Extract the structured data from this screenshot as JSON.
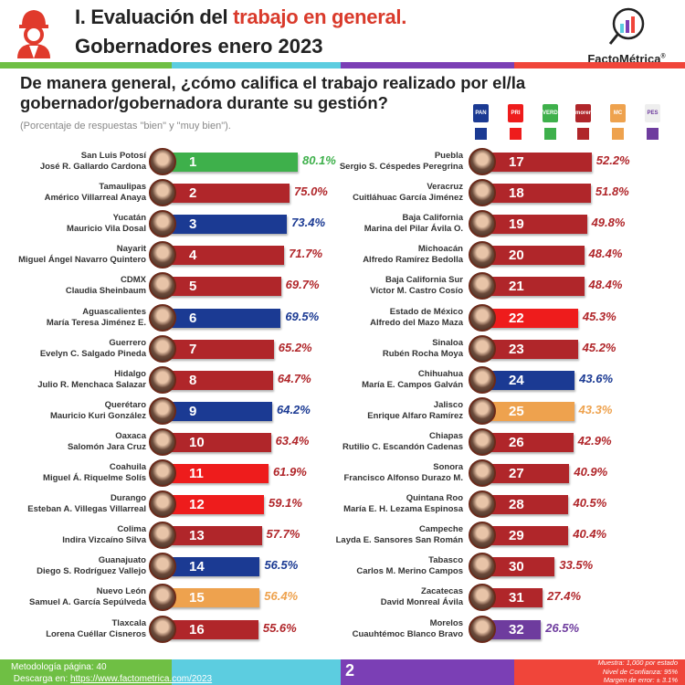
{
  "header": {
    "title_prefix": "I. Evaluación del ",
    "title_highlight": "trabajo en general.",
    "subtitle": "Gobernadores enero 2023",
    "brand": "FactoMétrica",
    "brand_mark": "®"
  },
  "question": "De manera general, ¿cómo califica el trabajo realizado por el/la gobernador/gobernadora durante su gestión?",
  "note": "(Porcentaje de respuestas \"bien\" y \"muy bien\").",
  "colors": {
    "stripe": [
      "#6fbf44",
      "#5ccde0",
      "#7b3fb5",
      "#f0453a"
    ],
    "PAN": "#1b3a93",
    "PRI": "#ee1c1c",
    "PVEM": "#3eb04b",
    "MORENA": "#b0262a",
    "MC": "#eea24e",
    "PES": "#6e3c9e"
  },
  "legend": [
    {
      "party": "PAN",
      "logo": "PAN"
    },
    {
      "party": "PRI",
      "logo": "PRI"
    },
    {
      "party": "PVEM",
      "logo": "VERDE"
    },
    {
      "party": "MORENA",
      "logo": "morena"
    },
    {
      "party": "MC",
      "logo": "MC"
    },
    {
      "party": "PES",
      "logo": "PES"
    }
  ],
  "chart_data": {
    "type": "bar",
    "orientation": "horizontal",
    "unit": "%",
    "rows": [
      {
        "rank": "1",
        "state": "San Luis Potosí",
        "governor": "José R. Gallardo Cardona",
        "value": 80.1,
        "label": "80.1%",
        "party": "PVEM"
      },
      {
        "rank": "2",
        "state": "Tamaulipas",
        "governor": "Américo Villarreal Anaya",
        "value": 75.0,
        "label": "75.0%",
        "party": "MORENA"
      },
      {
        "rank": "3",
        "state": "Yucatán",
        "governor": "Mauricio Vila Dosal",
        "value": 73.4,
        "label": "73.4%",
        "party": "PAN"
      },
      {
        "rank": "4",
        "state": "Nayarit",
        "governor": "Miguel Ángel Navarro Quintero",
        "value": 71.7,
        "label": "71.7%",
        "party": "MORENA"
      },
      {
        "rank": "5",
        "state": "CDMX",
        "governor": "Claudia Sheinbaum",
        "value": 69.7,
        "label": "69.7%",
        "party": "MORENA"
      },
      {
        "rank": "6",
        "state": "Aguascalientes",
        "governor": "María Teresa Jiménez E.",
        "value": 69.5,
        "label": "69.5%",
        "party": "PAN"
      },
      {
        "rank": "7",
        "state": "Guerrero",
        "governor": "Evelyn C. Salgado Pineda",
        "value": 65.2,
        "label": "65.2%",
        "party": "MORENA"
      },
      {
        "rank": "8",
        "state": "Hidalgo",
        "governor": "Julio R. Menchaca Salazar",
        "value": 64.7,
        "label": "64.7%",
        "party": "MORENA"
      },
      {
        "rank": "9",
        "state": "Querétaro",
        "governor": "Mauricio Kuri González",
        "value": 64.2,
        "label": "64.2%",
        "party": "PAN"
      },
      {
        "rank": "10",
        "state": "Oaxaca",
        "governor": "Salomón Jara Cruz",
        "value": 63.4,
        "label": "63.4%",
        "party": "MORENA"
      },
      {
        "rank": "11",
        "state": "Coahuila",
        "governor": "Miguel Á. Riquelme Solís",
        "value": 61.9,
        "label": "61.9%",
        "party": "PRI"
      },
      {
        "rank": "12",
        "state": "Durango",
        "governor": "Esteban A. Villegas Villarreal",
        "value": 59.1,
        "label": "59.1%",
        "party": "PRI"
      },
      {
        "rank": "13",
        "state": "Colima",
        "governor": "Indira Vizcaíno Silva",
        "value": 57.7,
        "label": "57.7%",
        "party": "MORENA"
      },
      {
        "rank": "14",
        "state": "Guanajuato",
        "governor": "Diego S. Rodríguez Vallejo",
        "value": 56.5,
        "label": "56.5%",
        "party": "PAN"
      },
      {
        "rank": "15",
        "state": "Nuevo León",
        "governor": "Samuel A. García Sepúlveda",
        "value": 56.4,
        "label": "56.4%",
        "party": "MC"
      },
      {
        "rank": "16",
        "state": "Tlaxcala",
        "governor": "Lorena Cuéllar Cisneros",
        "value": 55.6,
        "label": "55.6%",
        "party": "MORENA"
      },
      {
        "rank": "17",
        "state": "Puebla",
        "governor": "Sergio S. Céspedes Peregrina",
        "value": 52.2,
        "label": "52.2%",
        "party": "MORENA"
      },
      {
        "rank": "18",
        "state": "Veracruz",
        "governor": "Cuitláhuac García Jiménez",
        "value": 51.8,
        "label": "51.8%",
        "party": "MORENA"
      },
      {
        "rank": "19",
        "state": "Baja California",
        "governor": "Marina del Pilar Ávila O.",
        "value": 49.8,
        "label": "49.8%",
        "party": "MORENA"
      },
      {
        "rank": "20",
        "state": "Michoacán",
        "governor": "Alfredo Ramírez Bedolla",
        "value": 48.4,
        "label": "48.4%",
        "party": "MORENA"
      },
      {
        "rank": "21",
        "state": "Baja California Sur",
        "governor": "Víctor M. Castro Cosío",
        "value": 48.4,
        "label": "48.4%",
        "party": "MORENA"
      },
      {
        "rank": "22",
        "state": "Estado de México",
        "governor": "Alfredo del Mazo Maza",
        "value": 45.3,
        "label": "45.3%",
        "party": "PRI"
      },
      {
        "rank": "23",
        "state": "Sinaloa",
        "governor": "Rubén Rocha Moya",
        "value": 45.2,
        "label": "45.2%",
        "party": "MORENA"
      },
      {
        "rank": "24",
        "state": "Chihuahua",
        "governor": "María E. Campos Galván",
        "value": 43.6,
        "label": "43.6%",
        "party": "PAN"
      },
      {
        "rank": "25",
        "state": "Jalisco",
        "governor": "Enrique Alfaro Ramírez",
        "value": 43.3,
        "label": "43.3%",
        "party": "MC"
      },
      {
        "rank": "26",
        "state": "Chiapas",
        "governor": "Rutilio C. Escandón Cadenas",
        "value": 42.9,
        "label": "42.9%",
        "party": "MORENA"
      },
      {
        "rank": "27",
        "state": "Sonora",
        "governor": "Francisco Alfonso Durazo M.",
        "value": 40.9,
        "label": "40.9%",
        "party": "MORENA"
      },
      {
        "rank": "28",
        "state": "Quintana Roo",
        "governor": "María E. H. Lezama Espinosa",
        "value": 40.5,
        "label": "40.5%",
        "party": "MORENA"
      },
      {
        "rank": "29",
        "state": "Campeche",
        "governor": "Layda E. Sansores San Román",
        "value": 40.4,
        "label": "40.4%",
        "party": "MORENA"
      },
      {
        "rank": "30",
        "state": "Tabasco",
        "governor": "Carlos M. Merino Campos",
        "value": 33.5,
        "label": "33.5%",
        "party": "MORENA"
      },
      {
        "rank": "31",
        "state": "Zacatecas",
        "governor": "David Monreal Ávila",
        "value": 27.4,
        "label": "27.4%",
        "party": "MORENA"
      },
      {
        "rank": "32",
        "state": "Morelos",
        "governor": "Cuauhtémoc Blanco Bravo",
        "value": 26.5,
        "label": "26.5%",
        "party": "PES"
      }
    ]
  },
  "footer": {
    "methodology": "Metodología página: 40",
    "download_prefix": "Descarga en: ",
    "download_link": "https://www.factometrica.com/2023",
    "page": "2",
    "sample": "Muestra:  1,000 por estado",
    "confidence": "Nivel de Confianza: 95%",
    "margin": "Margen de error: ± 3.1%"
  }
}
